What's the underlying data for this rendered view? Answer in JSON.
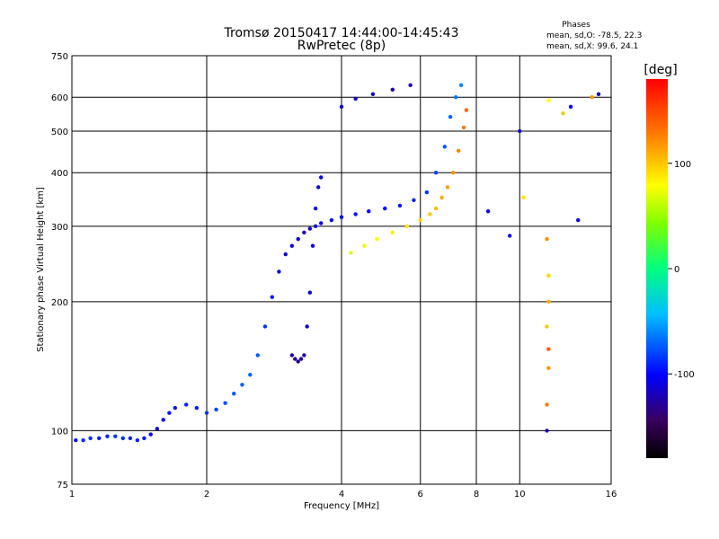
{
  "chart_data": {
    "type": "scatter",
    "title": "Tromsø 20150417 14:44:00-14:45:43",
    "subtitle": "RwPretec (8p)",
    "xlabel": "Frequency [MHz]",
    "ylabel": "Stationary phase Virtual Height [km]",
    "x_scale": "log",
    "y_scale": "log",
    "xlim": [
      1,
      16
    ],
    "ylim": [
      75,
      750
    ],
    "x_ticks": [
      1,
      2,
      4,
      6,
      8,
      10,
      16
    ],
    "x_tick_labels": [
      "1",
      "2",
      "4",
      "6",
      "8",
      "10",
      "16"
    ],
    "y_ticks": [
      75,
      100,
      200,
      300,
      400,
      500,
      600,
      750
    ],
    "y_tick_labels": [
      "75",
      "100",
      "200",
      "300",
      "400",
      "500",
      "600",
      "750"
    ],
    "grid": true,
    "color_axis": {
      "label": "[deg]",
      "range": [
        -180,
        180
      ],
      "ticks": [
        100,
        0,
        -100
      ],
      "tick_labels": [
        "100",
        "0",
        "-100"
      ]
    },
    "stats": {
      "header": "Phases",
      "line_o": "mean, sd,O: -78.5, 22.3",
      "line_x": "mean, sd,X:  99.6, 24.1"
    },
    "series": [
      {
        "x": [
          1.02,
          1.06,
          1.1,
          1.15,
          1.2,
          1.25,
          1.3,
          1.35,
          1.4,
          1.45,
          1.5,
          1.55,
          1.6,
          1.65,
          1.7,
          1.8,
          1.9,
          2.0,
          2.1,
          2.2,
          2.3,
          2.4,
          2.5,
          2.6,
          2.7,
          2.8,
          2.9,
          3.0,
          3.1,
          3.2,
          3.3,
          3.4,
          3.5,
          3.6,
          3.8,
          4.0,
          4.3,
          4.6,
          5.0,
          5.4,
          5.8,
          6.2,
          6.5,
          6.8,
          7.0,
          7.2,
          7.4
        ],
        "y": [
          95,
          95,
          96,
          96,
          97,
          97,
          96,
          96,
          95,
          96,
          98,
          101,
          106,
          110,
          113,
          115,
          113,
          110,
          112,
          116,
          122,
          128,
          135,
          150,
          175,
          205,
          235,
          258,
          270,
          280,
          290,
          296,
          300,
          305,
          310,
          315,
          320,
          325,
          330,
          335,
          345,
          360,
          400,
          460,
          540,
          600,
          640
        ],
        "phase": [
          -95,
          -90,
          -88,
          -92,
          -90,
          -86,
          -88,
          -92,
          -90,
          -95,
          -100,
          -110,
          -100,
          -95,
          -95,
          -90,
          -92,
          -85,
          -80,
          -78,
          -75,
          -72,
          -70,
          -75,
          -85,
          -95,
          -105,
          -110,
          -110,
          -112,
          -115,
          -110,
          -105,
          -110,
          -100,
          -98,
          -95,
          -100,
          -100,
          -95,
          -90,
          -85,
          -80,
          -75,
          -70,
          -65,
          -60
        ]
      },
      {
        "x": [
          3.1,
          3.15,
          3.2,
          3.25,
          3.3,
          3.35,
          3.4,
          3.45,
          3.5,
          3.55,
          3.6
        ],
        "y": [
          150,
          147,
          145,
          147,
          150,
          175,
          210,
          270,
          330,
          370,
          390
        ],
        "phase": [
          -120,
          -125,
          -130,
          -128,
          -120,
          -115,
          -110,
          -108,
          -105,
          -110,
          -112
        ]
      },
      {
        "x": [
          4.2,
          4.5,
          4.8,
          5.2,
          5.6,
          6.0,
          6.3,
          6.5,
          6.7,
          6.9,
          7.1,
          7.3,
          7.5,
          7.6
        ],
        "y": [
          260,
          270,
          280,
          290,
          300,
          310,
          320,
          330,
          350,
          370,
          400,
          450,
          510,
          560
        ],
        "phase": [
          70,
          75,
          80,
          85,
          90,
          95,
          100,
          105,
          110,
          115,
          120,
          125,
          130,
          140
        ]
      },
      {
        "x": [
          4.0,
          4.3,
          4.7,
          5.2,
          5.7
        ],
        "y": [
          570,
          595,
          610,
          625,
          640
        ],
        "phase": [
          -110,
          -115,
          -112,
          -120,
          -115
        ]
      },
      {
        "x": [
          11.5,
          11.5,
          11.6,
          11.6,
          11.5,
          11.6,
          11.6,
          11.5,
          11.6
        ],
        "y": [
          100,
          115,
          140,
          155,
          175,
          200,
          230,
          280,
          590
        ],
        "phase": [
          -120,
          130,
          120,
          140,
          100,
          110,
          95,
          120,
          80
        ]
      },
      {
        "x": [
          8.5,
          9.5,
          10.0,
          10.2,
          12.5,
          13.0,
          13.5,
          14.5,
          15.0
        ],
        "y": [
          325,
          285,
          500,
          350,
          550,
          570,
          310,
          600,
          610
        ],
        "phase": [
          -110,
          -100,
          -115,
          90,
          100,
          -105,
          -110,
          120,
          -120
        ]
      }
    ]
  }
}
